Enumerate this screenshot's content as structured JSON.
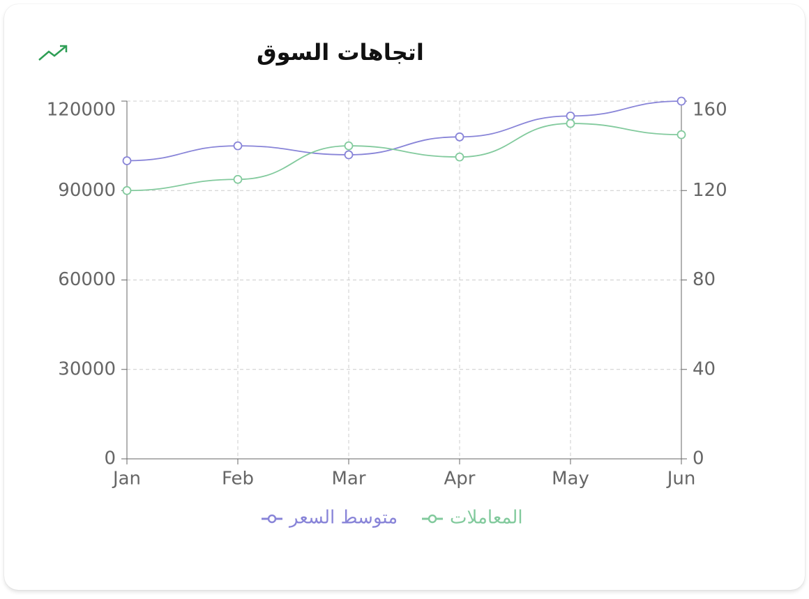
{
  "chart_data": {
    "type": "line",
    "title": "اتجاهات السوق",
    "categories": [
      "Jan",
      "Feb",
      "Mar",
      "Apr",
      "May",
      "Jun"
    ],
    "series": [
      {
        "name": "متوسط السعر",
        "color": "#8884d8",
        "values": [
          100000,
          105000,
          102000,
          108000,
          115000,
          120000
        ]
      },
      {
        "name": "المعاملات",
        "color": "#82ca9d",
        "axis": "y2",
        "values": [
          120,
          125,
          140,
          135,
          150,
          145
        ]
      }
    ],
    "ylim": [
      0,
      120000
    ],
    "yticks": [
      0,
      30000,
      60000,
      90000,
      120000
    ],
    "y2lim": [
      0,
      160
    ],
    "y2ticks": [
      0,
      40,
      80,
      120,
      160
    ],
    "grid": true
  }
}
